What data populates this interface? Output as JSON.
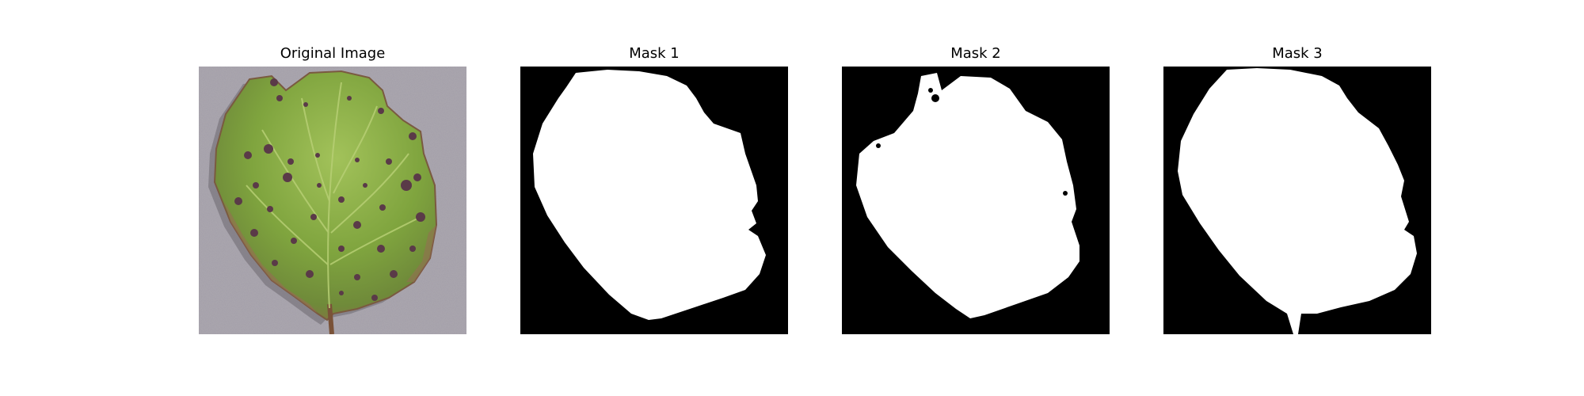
{
  "figure": {
    "panels": [
      {
        "title": "Original Image"
      },
      {
        "title": "Mask 1"
      },
      {
        "title": "Mask 2"
      },
      {
        "title": "Mask 3"
      }
    ]
  },
  "colors": {
    "background": "#ffffff",
    "mask_foreground": "#ffffff",
    "mask_background": "#000000",
    "photo_surface": "#a39ea8",
    "leaf_green": "#7fa43e",
    "leaf_edge": "#8c6a45",
    "lesion_spots": "#5a3a48"
  }
}
